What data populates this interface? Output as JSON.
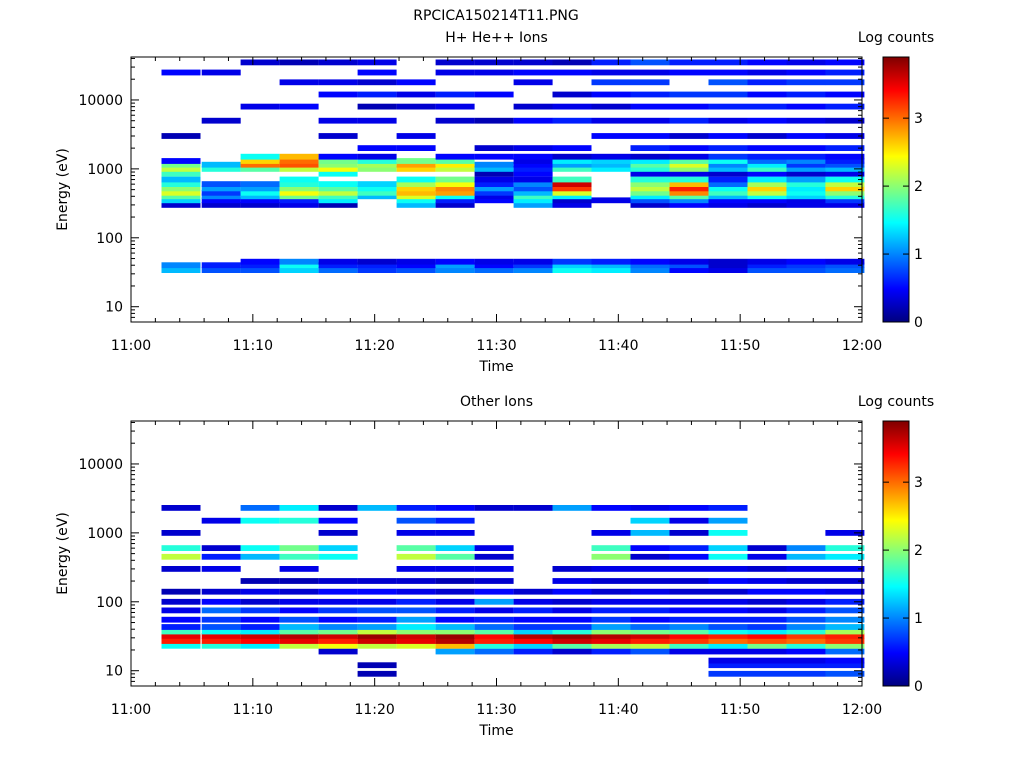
{
  "figure_title": "RPCICA150214T11.PNG",
  "colors": {
    "colormap": [
      "#00007f",
      "#0000ff",
      "#007fff",
      "#00ffff",
      "#7fff7f",
      "#ffff00",
      "#ff7f00",
      "#ff0000",
      "#7f0000"
    ]
  },
  "chart_data": [
    {
      "type": "heatmap",
      "title": "H+ He++ Ions",
      "xlabel": "Time",
      "ylabel": "Energy (eV)",
      "x_tick_labels": [
        "11:00",
        "11:10",
        "11:20",
        "11:30",
        "11:40",
        "11:50",
        "12:00"
      ],
      "x_tick_values_min": [
        0,
        10,
        20,
        30,
        40,
        50,
        60
      ],
      "xlim_min": [
        0,
        60
      ],
      "y_scale": "log",
      "y_tick_labels": [
        "10",
        "100",
        "1000",
        "10000"
      ],
      "y_tick_values": [
        10,
        100,
        1000,
        10000
      ],
      "ylim": [
        6,
        42000
      ],
      "colorbar": {
        "label": "Log counts",
        "tick_labels": [
          "0",
          "1",
          "2",
          "3"
        ],
        "tick_values": [
          0,
          1,
          2,
          3
        ],
        "range": [
          0,
          3.9
        ]
      },
      "time_bins_start_min": [
        2.5,
        5.8,
        9.0,
        12.2,
        15.4,
        18.6,
        21.8,
        25.0,
        28.2,
        31.4,
        34.6,
        37.8,
        41.0,
        44.2,
        47.4,
        50.6,
        53.8,
        57.0
      ],
      "bin_width_min": 3.2,
      "energy_rows_ev": [
        34,
        40,
        45,
        300,
        350,
        400,
        450,
        520,
        600,
        700,
        850,
        1000,
        1150,
        1300,
        1500,
        2000,
        3000,
        5000,
        8000,
        12000,
        18000,
        25000,
        35000
      ],
      "columns": [
        [
          1.2,
          1.0,
          0,
          0.3,
          1.3,
          1.8,
          2.3,
          2.0,
          1.6,
          1.2,
          1.7,
          2.2,
          1.9,
          0.5,
          0,
          0,
          0.2,
          0,
          0,
          0,
          0,
          0.5,
          0
        ],
        [
          0.8,
          0.6,
          0,
          0.3,
          0.5,
          1.0,
          0.7,
          1.1,
          0.8,
          0,
          0,
          1.6,
          1.2,
          0,
          0,
          0,
          0,
          0.3,
          0,
          0,
          0,
          0.4,
          0
        ],
        [
          0.8,
          0.6,
          0.5,
          0.3,
          0.5,
          1.2,
          1.5,
          1.1,
          0.9,
          0,
          0,
          1.8,
          3.0,
          2.6,
          1.5,
          0,
          0,
          0,
          0.4,
          0,
          0,
          0,
          0.3
        ],
        [
          1.3,
          1.5,
          1.0,
          0.4,
          0.6,
          1.9,
          2.4,
          2.0,
          1.6,
          1.5,
          0,
          2.2,
          3.1,
          3.0,
          2.7,
          0,
          0,
          0,
          0.5,
          0,
          0.4,
          0,
          0.2
        ],
        [
          0.9,
          0.6,
          0.4,
          0.2,
          1.4,
          1.7,
          2.2,
          1.8,
          1.5,
          0,
          1.5,
          2.4,
          2.0,
          1.9,
          0.5,
          0,
          0.3,
          0.4,
          0,
          0.5,
          0.4,
          0,
          0.3
        ],
        [
          0.7,
          0.6,
          0.3,
          0,
          0,
          1.2,
          1.7,
          1.5,
          1.3,
          0,
          0,
          2.0,
          2.1,
          1.6,
          0.4,
          0.5,
          0,
          0.4,
          0.2,
          0.6,
          0.3,
          0.5,
          0.4
        ],
        [
          0.8,
          0.5,
          0.4,
          1.2,
          1.5,
          2.3,
          2.7,
          2.6,
          2.1,
          1.5,
          0,
          2.6,
          2.8,
          1.9,
          0,
          0.5,
          0.4,
          0,
          0.3,
          0.4,
          0.5,
          0,
          0
        ],
        [
          1.0,
          1.1,
          0.5,
          0.3,
          0.6,
          1.5,
          2.8,
          2.9,
          2.4,
          1.9,
          0,
          2.2,
          2.5,
          1.8,
          0.5,
          0,
          0,
          0.3,
          0.4,
          0.6,
          0,
          0.4,
          0.3
        ],
        [
          0.9,
          0.5,
          0.4,
          0,
          0.5,
          0.4,
          0.7,
          1.1,
          0.6,
          0.4,
          0.2,
          1.2,
          1.0,
          0,
          0.5,
          0.3,
          0,
          0.2,
          0,
          0.5,
          0,
          0.4,
          0.3
        ],
        [
          1.0,
          0.7,
          0.4,
          1.1,
          1.4,
          1.7,
          1.2,
          0.8,
          1.0,
          0.4,
          0.5,
          0.6,
          0.5,
          0.4,
          0.5,
          0.4,
          0,
          0.5,
          0.3,
          0,
          0.4,
          0.5,
          0.3
        ],
        [
          1.5,
          1.3,
          0.7,
          0.4,
          0.3,
          1.4,
          2.3,
          3.2,
          3.6,
          1.7,
          0,
          1.7,
          1.1,
          1.4,
          0.3,
          0.5,
          0,
          0.6,
          0.4,
          0.3,
          0,
          0.5,
          0.2
        ],
        [
          1.4,
          1.2,
          0.6,
          0,
          0.4,
          0,
          0,
          0,
          0,
          0,
          0,
          1.4,
          1.2,
          1.3,
          0.4,
          0,
          0.5,
          0.4,
          0.3,
          0.5,
          0.7,
          0.4,
          0.6
        ],
        [
          1.0,
          0.9,
          0.5,
          0.3,
          0.8,
          1.4,
          1.9,
          2.2,
          2.0,
          1.6,
          0.4,
          1.6,
          1.8,
          1.4,
          0.3,
          0.6,
          0.5,
          0.4,
          0.5,
          0.6,
          0.7,
          0.4,
          0.8
        ],
        [
          0.5,
          0.8,
          0.4,
          0.5,
          1.0,
          1.8,
          2.9,
          3.3,
          2.7,
          1.6,
          0.4,
          2.0,
          2.3,
          1.8,
          0.4,
          0.5,
          0.3,
          0.6,
          0.5,
          0.7,
          0,
          0.5,
          0.6
        ],
        [
          0.4,
          0.3,
          0.3,
          0.4,
          0.5,
          1.2,
          1.7,
          1.5,
          0.9,
          0.6,
          0.3,
          1.2,
          1.0,
          1.5,
          0.7,
          0.6,
          0.5,
          0.4,
          0.6,
          0.7,
          0.8,
          0.5,
          0.6
        ],
        [
          0.8,
          0.6,
          0.4,
          0.3,
          0.5,
          1.5,
          2.2,
          2.6,
          2.1,
          1.4,
          0.5,
          1.7,
          1.4,
          0.9,
          0.6,
          0.5,
          0.3,
          0.5,
          0.6,
          0.5,
          0.6,
          0.4,
          0.5
        ],
        [
          0.8,
          0.7,
          0.5,
          0.4,
          0.4,
          1.3,
          1.5,
          1.4,
          1.6,
          1.1,
          0.3,
          1.1,
          0.7,
          1.0,
          0.6,
          0.5,
          0.5,
          0.4,
          0.5,
          0.6,
          0.7,
          0.5,
          0.4
        ],
        [
          0.9,
          0.8,
          0.4,
          0.4,
          0.7,
          1.6,
          2.0,
          2.6,
          2.2,
          1.5,
          0.4,
          1.2,
          0.8,
          0.6,
          0.5,
          0.6,
          0.4,
          0.3,
          0.6,
          0.5,
          0.7,
          0.6,
          0.5
        ]
      ]
    },
    {
      "type": "heatmap",
      "title": "Other Ions",
      "xlabel": "Time",
      "ylabel": "Energy (eV)",
      "x_tick_labels": [
        "11:00",
        "11:10",
        "11:20",
        "11:30",
        "11:40",
        "11:50",
        "12:00"
      ],
      "x_tick_values_min": [
        0,
        10,
        20,
        30,
        40,
        50,
        60
      ],
      "xlim_min": [
        0,
        60
      ],
      "y_scale": "log",
      "y_tick_labels": [
        "10",
        "100",
        "1000",
        "10000"
      ],
      "y_tick_values": [
        10,
        100,
        1000,
        10000
      ],
      "ylim": [
        6,
        42000
      ],
      "colorbar": {
        "label": "Log counts",
        "tick_labels": [
          "0",
          "1",
          "2",
          "3"
        ],
        "tick_values": [
          0,
          1,
          2,
          3
        ],
        "range": [
          0,
          3.9
        ]
      },
      "time_bins_start_min": [
        2.5,
        5.8,
        9.0,
        12.2,
        15.4,
        18.6,
        21.8,
        25.0,
        28.2,
        31.4,
        34.6,
        37.8,
        41.0,
        44.2,
        47.4,
        50.6,
        53.8,
        57.0
      ],
      "bin_width_min": 3.2,
      "energy_rows_ev": [
        9,
        12,
        14,
        19,
        23,
        27,
        32,
        37,
        43,
        55,
        75,
        100,
        140,
        200,
        300,
        450,
        600,
        1000,
        1500,
        2300
      ],
      "columns": [
        [
          0,
          0,
          0,
          0,
          1.5,
          3.3,
          3.5,
          1.7,
          0.6,
          0.5,
          0.4,
          0.3,
          0.2,
          0,
          0.3,
          2.2,
          1.6,
          0.3,
          0,
          0.3
        ],
        [
          0,
          0,
          0,
          0,
          1.6,
          3.3,
          3.5,
          1.5,
          0.8,
          0.7,
          0.9,
          0.5,
          0.3,
          0,
          0.4,
          0.6,
          0.3,
          0,
          0.4,
          0
        ],
        [
          0,
          0,
          0,
          0,
          1.4,
          3.4,
          3.6,
          1.4,
          0.6,
          0.5,
          0.7,
          0.3,
          0.4,
          0.2,
          0,
          1.2,
          1.5,
          0,
          1.5,
          0.9
        ],
        [
          0,
          0,
          0,
          0,
          2.2,
          3.5,
          3.7,
          1.8,
          1.2,
          0.8,
          0.5,
          0.4,
          0.3,
          0.2,
          0.4,
          1.7,
          1.9,
          0,
          1.6,
          1.4
        ],
        [
          0,
          0,
          0,
          0.3,
          2.4,
          3.3,
          3.6,
          1.9,
          1.0,
          0.5,
          0.7,
          0.4,
          0.5,
          0.3,
          0,
          1.5,
          1.3,
          0.3,
          0.5,
          0.3
        ],
        [
          0.2,
          0.2,
          0,
          0,
          2.2,
          3.6,
          3.8,
          2.2,
          1.1,
          0.6,
          0.8,
          0.4,
          0.5,
          0.3,
          0,
          0,
          0,
          0,
          0,
          1.2
        ],
        [
          0,
          0,
          0,
          0,
          2.3,
          3.5,
          3.6,
          2.0,
          1.4,
          1.1,
          0.8,
          0.6,
          0.4,
          0.3,
          0.4,
          2.2,
          1.8,
          0.4,
          0.8,
          0.6
        ],
        [
          0,
          0,
          0,
          1.1,
          2.7,
          3.7,
          3.8,
          2.0,
          1.2,
          0.5,
          0.6,
          0.4,
          0.3,
          0.2,
          0.4,
          1.8,
          1.3,
          0.4,
          0.6,
          0.5
        ],
        [
          0,
          0,
          0,
          0.9,
          1.6,
          3.3,
          3.4,
          1.8,
          0.9,
          0.6,
          0.4,
          1.1,
          0.5,
          0.3,
          0.4,
          0.3,
          0.4,
          0,
          0,
          0.3
        ],
        [
          0,
          0,
          0,
          0.6,
          1.3,
          3.4,
          3.7,
          1.3,
          0.7,
          0.5,
          0.6,
          0.4,
          0.3,
          0,
          0,
          0,
          0,
          0,
          0,
          0.3
        ],
        [
          0,
          0,
          0,
          0.3,
          1.8,
          3.6,
          3.8,
          1.6,
          0.7,
          0.5,
          0.4,
          0.3,
          0.5,
          0.4,
          0.3,
          0,
          0,
          0,
          0,
          1.1
        ],
        [
          0,
          0,
          0,
          0.6,
          2.1,
          3.5,
          3.7,
          2.0,
          1.1,
          0.7,
          0.6,
          0.4,
          0.3,
          0.3,
          0.4,
          2.0,
          1.7,
          0.4,
          0,
          0.5
        ],
        [
          0,
          0,
          0,
          0.8,
          2.2,
          3.3,
          3.6,
          1.9,
          0.9,
          0.5,
          0.6,
          0.4,
          0.4,
          0.3,
          0.4,
          0.3,
          0.5,
          1.2,
          1.3,
          0.4
        ],
        [
          0,
          0,
          0,
          0.4,
          1.7,
          3.2,
          3.4,
          1.8,
          1.0,
          0.6,
          0.5,
          0.4,
          0.3,
          0.3,
          0.4,
          0.5,
          0.6,
          0.3,
          0.4,
          0.5
        ],
        [
          0.7,
          0.6,
          0.4,
          0.4,
          1.4,
          3.0,
          3.3,
          1.5,
          0.8,
          0.6,
          0.5,
          0.4,
          0.3,
          0.5,
          0.4,
          1.5,
          1.3,
          1.5,
          1.1,
          0.6
        ],
        [
          0.7,
          0.6,
          0.4,
          0.4,
          1.9,
          3.1,
          3.4,
          1.4,
          0.7,
          0.6,
          0.4,
          0.3,
          0.5,
          0.4,
          0.3,
          0.4,
          0.3,
          0,
          0,
          0
        ],
        [
          0.7,
          0.6,
          0.4,
          0.5,
          1.6,
          3.0,
          3.2,
          1.6,
          1.0,
          0.8,
          0.6,
          0.4,
          0.5,
          0.3,
          0.4,
          1.2,
          1.0,
          0,
          0,
          0
        ],
        [
          0.8,
          0.6,
          0.5,
          0.9,
          2.0,
          3.2,
          3.3,
          2.1,
          1.2,
          1.0,
          0.8,
          0.6,
          0.4,
          0.3,
          0.4,
          1.4,
          1.6,
          0.4,
          0,
          0
        ]
      ]
    }
  ]
}
